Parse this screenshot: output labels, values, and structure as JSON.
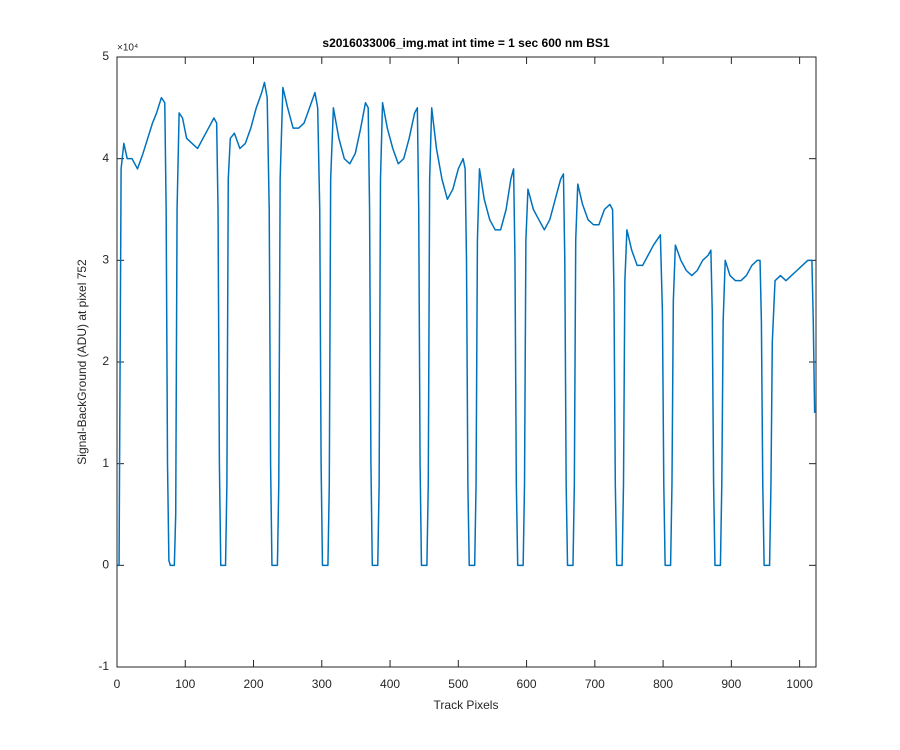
{
  "chart_data": {
    "type": "line",
    "title": "s2016033006_img.mat int time = 1 sec  600 nm BS1",
    "x_label": "Track Pixels",
    "y_label": "Signal-BackGround (ADU) at pixel 752",
    "y_multiplier": "×10⁴",
    "xlim": [
      0,
      1024
    ],
    "ylim": [
      -1,
      5
    ],
    "xticks": [
      0,
      100,
      200,
      300,
      400,
      500,
      600,
      700,
      800,
      900,
      1000
    ],
    "yticks": [
      -1,
      0,
      1,
      2,
      3,
      4,
      5
    ],
    "grid": false,
    "series": [
      {
        "color": "#0072bd",
        "x": [
          0,
          3,
          6,
          10,
          15,
          22,
          30,
          38,
          45,
          52,
          58,
          65,
          70,
          72,
          74,
          76,
          78,
          84,
          86,
          88,
          91,
          96,
          102,
          110,
          118,
          126,
          134,
          142,
          146,
          148,
          150,
          152,
          159,
          161,
          163,
          166,
          172,
          180,
          188,
          196,
          204,
          212,
          216,
          220,
          223,
          225,
          227,
          235,
          237,
          239,
          243,
          250,
          258,
          266,
          274,
          282,
          290,
          294,
          297,
          299,
          301,
          309,
          311,
          313,
          317,
          325,
          333,
          341,
          349,
          357,
          364,
          368,
          370,
          372,
          374,
          382,
          384,
          386,
          389,
          396,
          404,
          412,
          420,
          428,
          436,
          440,
          442,
          444,
          446,
          454,
          456,
          458,
          461,
          468,
          476,
          484,
          492,
          500,
          507,
          510,
          512,
          514,
          516,
          524,
          526,
          528,
          531,
          538,
          546,
          554,
          562,
          570,
          577,
          581,
          583,
          585,
          587,
          595,
          597,
          599,
          602,
          610,
          618,
          626,
          634,
          642,
          650,
          654,
          656,
          658,
          660,
          668,
          670,
          672,
          675,
          682,
          690,
          698,
          706,
          714,
          722,
          726,
          728,
          730,
          732,
          740,
          742,
          744,
          747,
          754,
          762,
          770,
          778,
          786,
          796,
          799,
          801,
          803,
          811,
          813,
          815,
          818,
          826,
          834,
          842,
          850,
          858,
          866,
          870,
          872,
          874,
          876,
          884,
          886,
          888,
          891,
          898,
          906,
          914,
          922,
          930,
          938,
          942,
          944,
          946,
          948,
          956,
          958,
          960,
          964,
          972,
          980,
          988,
          996,
          1004,
          1012,
          1018,
          1020,
          1022
        ],
        "values": [
          0,
          0,
          3.9,
          4.15,
          4.0,
          4.0,
          3.9,
          4.05,
          4.2,
          4.35,
          4.45,
          4.6,
          4.55,
          3.5,
          1.0,
          0.05,
          0,
          0,
          0.5,
          3.5,
          4.45,
          4.4,
          4.2,
          4.15,
          4.1,
          4.2,
          4.3,
          4.4,
          4.35,
          3.5,
          1.0,
          0,
          0,
          0.8,
          3.8,
          4.2,
          4.25,
          4.1,
          4.15,
          4.3,
          4.5,
          4.65,
          4.75,
          4.6,
          3.5,
          1.0,
          0,
          0,
          0.8,
          3.8,
          4.7,
          4.5,
          4.3,
          4.3,
          4.35,
          4.5,
          4.65,
          4.5,
          3.5,
          1.0,
          0,
          0,
          0.8,
          3.8,
          4.5,
          4.2,
          4.0,
          3.95,
          4.05,
          4.3,
          4.55,
          4.5,
          3.5,
          1.0,
          0,
          0,
          0.8,
          3.8,
          4.55,
          4.3,
          4.1,
          3.95,
          4.0,
          4.2,
          4.45,
          4.5,
          3.5,
          1.0,
          0,
          0,
          0.8,
          3.8,
          4.5,
          4.1,
          3.8,
          3.6,
          3.7,
          3.9,
          4.0,
          3.9,
          3.0,
          0.8,
          0,
          0,
          0.8,
          3.2,
          3.9,
          3.6,
          3.4,
          3.3,
          3.3,
          3.5,
          3.8,
          3.9,
          3.0,
          0.8,
          0,
          0,
          0.8,
          3.2,
          3.7,
          3.5,
          3.4,
          3.3,
          3.4,
          3.6,
          3.8,
          3.85,
          3.0,
          0.8,
          0,
          0,
          0.8,
          3.2,
          3.75,
          3.55,
          3.4,
          3.35,
          3.35,
          3.5,
          3.55,
          3.5,
          2.7,
          0.8,
          0,
          0,
          0.8,
          2.8,
          3.3,
          3.1,
          2.95,
          2.95,
          3.05,
          3.15,
          3.25,
          2.5,
          0.8,
          0,
          0,
          0.8,
          2.6,
          3.15,
          3.0,
          2.9,
          2.85,
          2.9,
          3.0,
          3.05,
          3.1,
          2.5,
          0.8,
          0,
          0,
          0.8,
          2.4,
          3.0,
          2.85,
          2.8,
          2.8,
          2.85,
          2.95,
          3.0,
          3.0,
          2.4,
          0.8,
          0,
          0,
          0.8,
          2.2,
          2.8,
          2.85,
          2.8,
          2.85,
          2.9,
          2.95,
          3.0,
          3.0,
          2.4,
          1.5
        ]
      }
    ]
  }
}
